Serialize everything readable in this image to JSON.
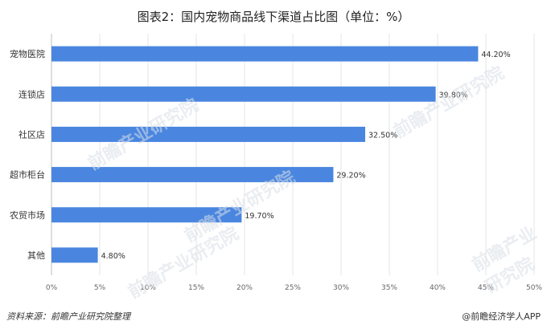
{
  "chart_data": {
    "type": "bar",
    "orientation": "horizontal",
    "title": "图表2：国内宠物商品线下渠道占比图（单位：%）",
    "categories": [
      "宠物医院",
      "连锁店",
      "社区店",
      "超市柜台",
      "农贸市场",
      "其他"
    ],
    "values": [
      44.2,
      39.8,
      32.5,
      29.2,
      19.7,
      4.8
    ],
    "data_labels": [
      "44.20%",
      "39.80%",
      "32.50%",
      "29.20%",
      "19.70%",
      "4.80%"
    ],
    "xlim": [
      0,
      50
    ],
    "x_ticks": [
      "0%",
      "5%",
      "10%",
      "15%",
      "20%",
      "25%",
      "30%",
      "35%",
      "40%",
      "45%",
      "50%"
    ],
    "grid": "vertical",
    "bar_color": "#4a86e0"
  },
  "footer": {
    "source": "资料来源：前瞻产业研究院整理",
    "brand": "@前瞻经济学人APP"
  },
  "watermark": "前瞻产业研究院"
}
